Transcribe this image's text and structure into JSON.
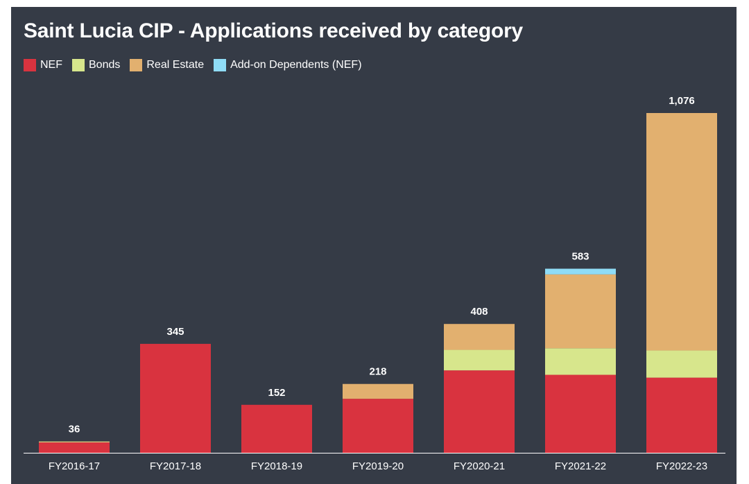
{
  "chart_data": {
    "type": "bar",
    "stacked": true,
    "title": "Saint Lucia CIP - Applications received by category",
    "xlabel": "",
    "ylabel": "",
    "ylim": [
      0,
      1076
    ],
    "categories": [
      "FY2016-17",
      "FY2017-18",
      "FY2018-19",
      "FY2019-20",
      "FY2020-21",
      "FY2021-22",
      "FY2022-23"
    ],
    "series": [
      {
        "name": "NEF",
        "color": "#d9333f",
        "values": [
          33,
          345,
          152,
          171,
          261,
          247,
          238
        ]
      },
      {
        "name": "Bonds",
        "color": "#d7e68c",
        "values": [
          2,
          0,
          0,
          0,
          65,
          84,
          86
        ]
      },
      {
        "name": "Real Estate",
        "color": "#e2b06f",
        "values": [
          1,
          0,
          0,
          47,
          82,
          234,
          752
        ]
      },
      {
        "name": "Add-on Dependents (NEF)",
        "color": "#8fdcf6",
        "values": [
          0,
          0,
          0,
          0,
          0,
          18,
          0
        ]
      }
    ],
    "totals": [
      "36",
      "345",
      "152",
      "218",
      "408",
      "583",
      "1,076"
    ],
    "legend_position": "top-left",
    "grid": false
  },
  "colors": {
    "background": "#353b46",
    "axis": "#ffffff"
  }
}
